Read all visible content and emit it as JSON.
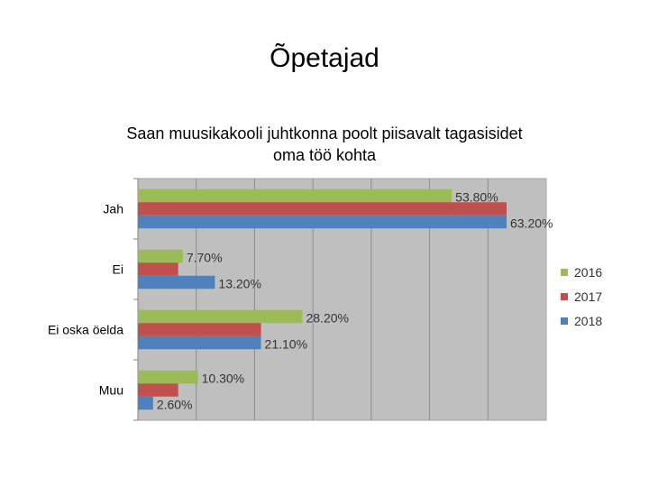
{
  "slide": {
    "title": "Õpetajad"
  },
  "chart_data": {
    "type": "bar",
    "orientation": "horizontal",
    "title_lines": [
      "Saan muusikakooli juhtkonna poolt piisavalt tagasisidet",
      "oma töö kohta"
    ],
    "categories": [
      "Jah",
      "Ei",
      "Ei oska öelda",
      "Muu"
    ],
    "series": [
      {
        "name": "2016",
        "color": "#9bbb59",
        "values": [
          53.8,
          7.7,
          28.2,
          10.3
        ],
        "labels": [
          "53.80%",
          "7.70%",
          "28.20%",
          "10.30%"
        ]
      },
      {
        "name": "2017",
        "color": "#c0504d",
        "values": [
          63.2,
          6.9,
          21.1,
          6.9
        ],
        "labels": [
          "",
          "",
          "",
          ""
        ]
      },
      {
        "name": "2018",
        "color": "#4f81bd",
        "values": [
          63.2,
          13.2,
          21.1,
          2.6
        ],
        "labels": [
          "63.20%",
          "13.20%",
          "21.10%",
          "2.60%"
        ]
      }
    ],
    "xlim": [
      0,
      70
    ],
    "grid": true,
    "legend": "right"
  }
}
